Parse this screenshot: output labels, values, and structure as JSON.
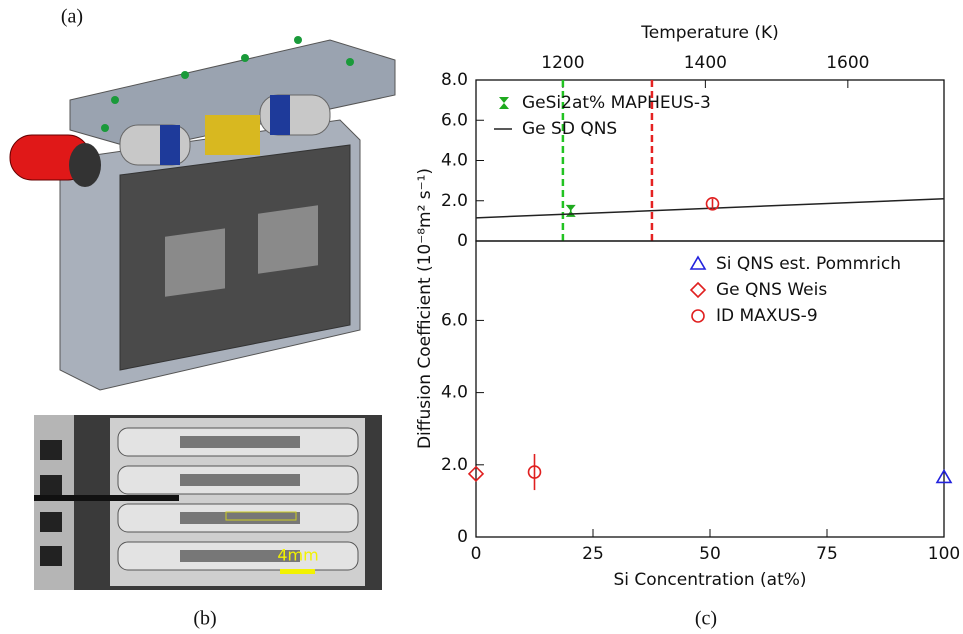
{
  "panel_labels": [
    "(a)",
    "(b)",
    "(c)"
  ],
  "scale_bar": "4mm",
  "chart_data": [
    {
      "type": "scatter",
      "xlabel": "Temperature (K)",
      "xlim": [
        1078,
        1735
      ],
      "xticks": [
        1200,
        1400,
        1600
      ],
      "ylim": [
        0,
        8.0
      ],
      "yticks": [
        0,
        {
          "value": 2,
          "label": "2.0"
        },
        {
          "value": 4,
          "label": "4.0"
        },
        {
          "value": 6,
          "label": "6.0"
        },
        {
          "value": 8,
          "label": "8.0"
        }
      ],
      "vlines": [
        {
          "value": 1200,
          "color": "#22c322"
        },
        {
          "value": 1325,
          "color": "#e52222"
        }
      ],
      "legend": "upper left",
      "series": [
        {
          "name": "GeSi2at% MAPHEUS-3",
          "color": "#1faa1f",
          "marker": "hourglass",
          "x": [
            1211
          ],
          "values": [
            1.5
          ],
          "errors": [
            0.25
          ]
        },
        {
          "name": "Ge SD QNS",
          "color": "#222222",
          "marker": "line",
          "x": [
            1078,
            1735
          ],
          "values": [
            1.15,
            2.1
          ]
        },
        {
          "color": "#e02020",
          "marker": "circle",
          "x": [
            1410
          ],
          "values": [
            1.85
          ],
          "errors": [
            0.25
          ]
        }
      ]
    },
    {
      "type": "scatter",
      "xlabel": "Si Concentration (at%)",
      "ylabel": "Diffusion Coefficient (10⁻⁸m² s⁻¹)",
      "xlim": [
        0,
        100
      ],
      "xticks": [
        0,
        25,
        50,
        75,
        100
      ],
      "ylim": [
        0,
        8.2
      ],
      "yticks": [
        0,
        {
          "value": 2,
          "label": "2.0"
        },
        {
          "value": 4,
          "label": "4.0"
        },
        {
          "value": 6,
          "label": "6.0"
        }
      ],
      "legend": "upper right",
      "series": [
        {
          "name": "Si QNS est. Pommrich",
          "color": "#2222dd",
          "marker": "triangle",
          "x": [
            100
          ],
          "values": [
            1.65
          ]
        },
        {
          "name": "Ge QNS Weis",
          "color": "#e02020",
          "marker": "diamond",
          "x": [
            0
          ],
          "values": [
            1.75
          ]
        },
        {
          "name": "ID MAXUS-9",
          "color": "#e02020",
          "marker": "circle",
          "x": [
            12.5
          ],
          "values": [
            1.8
          ],
          "errors": [
            0.5
          ]
        }
      ]
    }
  ]
}
